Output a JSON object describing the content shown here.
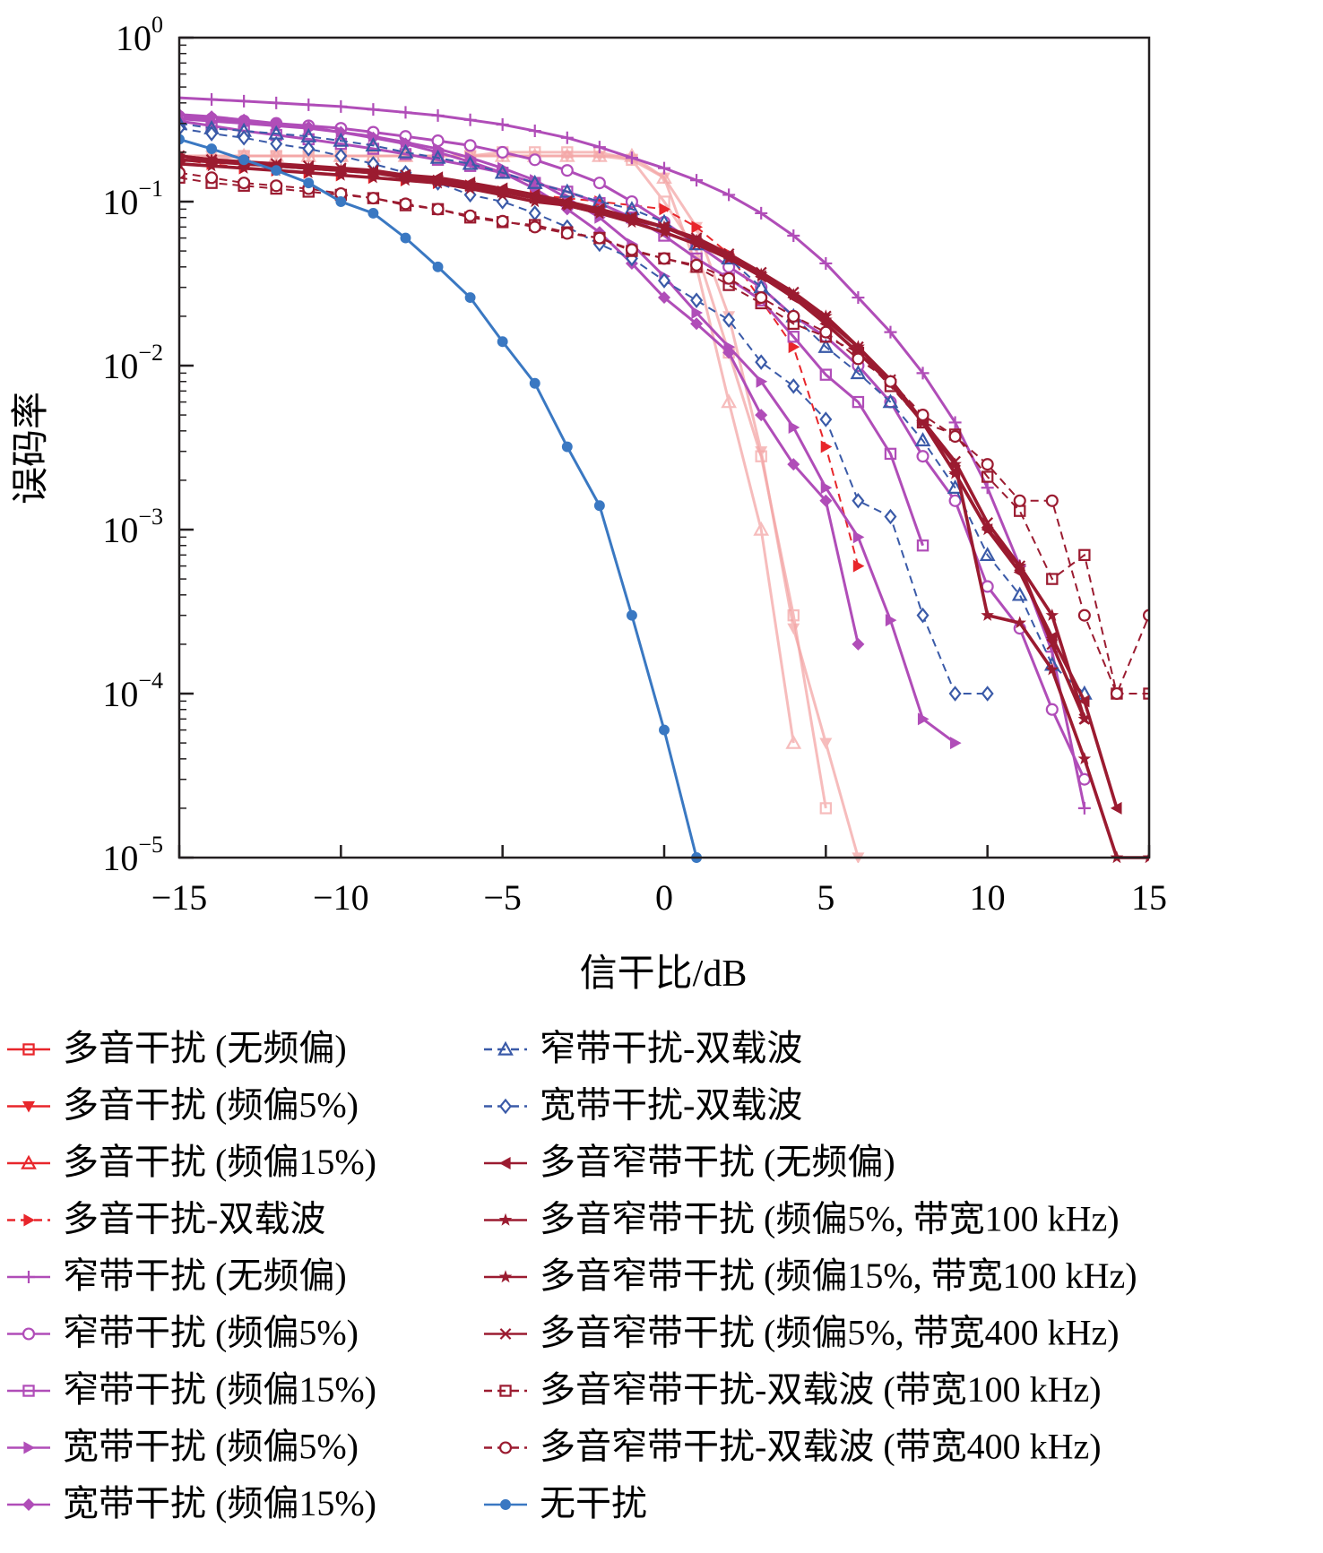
{
  "chart_data": {
    "type": "line",
    "title": "",
    "xlabel": "信干比/dB",
    "ylabel": "误码率",
    "xlim": [
      -15,
      15
    ],
    "ylim": [
      1e-05,
      1
    ],
    "yscale": "log",
    "grid": false,
    "legend_position": "below plot, two columns",
    "x_ticks": [
      -15,
      -10,
      -5,
      0,
      5,
      10,
      15
    ],
    "x_tick_labels": [
      "−15",
      "−10",
      "−5",
      "0",
      "5",
      "10",
      "15"
    ],
    "y_ticks": [
      1,
      0.1,
      0.01,
      0.001,
      0.0001,
      1e-05
    ],
    "y_tick_labels": [
      {
        "base": "10",
        "exp": "0"
      },
      {
        "base": "10",
        "exp": "−1"
      },
      {
        "base": "10",
        "exp": "−2"
      },
      {
        "base": "10",
        "exp": "−3"
      },
      {
        "base": "10",
        "exp": "−4"
      },
      {
        "base": "10",
        "exp": "−5"
      }
    ],
    "series": [
      {
        "name": "多音干扰 (无频偏)",
        "color": "#f4a6a6",
        "dash": false,
        "marker": "square",
        "opacity": 0.75,
        "x": [
          -15,
          -14,
          -13,
          -12,
          -11,
          -10,
          -9,
          -8,
          -7,
          -6,
          -5,
          -4,
          -3,
          -2,
          -1,
          0,
          1,
          2,
          3,
          4,
          5
        ],
        "y": [
          0.18,
          0.18,
          0.19,
          0.19,
          0.19,
          0.19,
          0.19,
          0.19,
          0.19,
          0.19,
          0.2,
          0.2,
          0.2,
          0.2,
          0.18,
          0.1,
          0.05,
          0.012,
          0.0028,
          0.0003,
          2e-05
        ]
      },
      {
        "name": "多音干扰 (频偏5%)",
        "color": "#f4a6a6",
        "dash": false,
        "marker": "triangle-down",
        "opacity": 0.75,
        "x": [
          -15,
          -14,
          -13,
          -12,
          -11,
          -10,
          -9,
          -8,
          -7,
          -6,
          -5,
          -4,
          -3,
          -2,
          -1,
          0,
          1,
          2,
          3,
          4,
          5,
          6
        ],
        "y": [
          0.19,
          0.19,
          0.19,
          0.19,
          0.19,
          0.19,
          0.19,
          0.19,
          0.19,
          0.19,
          0.19,
          0.19,
          0.19,
          0.19,
          0.18,
          0.14,
          0.07,
          0.02,
          0.003,
          0.00025,
          5e-05,
          1e-05
        ]
      },
      {
        "name": "多音干扰 (频偏15%)",
        "color": "#f4a6a6",
        "dash": false,
        "marker": "triangle-up",
        "opacity": 0.75,
        "x": [
          -15,
          -14,
          -13,
          -12,
          -11,
          -10,
          -9,
          -8,
          -7,
          -6,
          -5,
          -4,
          -3,
          -2,
          -1,
          0,
          1,
          2,
          3,
          4
        ],
        "y": [
          0.19,
          0.19,
          0.19,
          0.19,
          0.19,
          0.19,
          0.19,
          0.19,
          0.19,
          0.19,
          0.19,
          0.19,
          0.19,
          0.19,
          0.19,
          0.14,
          0.04,
          0.006,
          0.001,
          5e-05
        ]
      },
      {
        "name": "多音干扰-双载波",
        "color": "#e8262b",
        "dash": true,
        "marker": "triangle-right",
        "opacity": 1,
        "x": [
          -15,
          -14,
          -13,
          -12,
          -11,
          -10,
          -9,
          -8,
          -7,
          -6,
          -5,
          -4,
          -3,
          -2,
          -1,
          0,
          1,
          2,
          3,
          4,
          5,
          6
        ],
        "y": [
          0.18,
          0.17,
          0.16,
          0.155,
          0.15,
          0.145,
          0.14,
          0.135,
          0.13,
          0.125,
          0.115,
          0.11,
          0.105,
          0.1,
          0.095,
          0.09,
          0.07,
          0.048,
          0.025,
          0.013,
          0.0032,
          0.0006
        ]
      },
      {
        "name": "窄带干扰 (无频偏)",
        "color": "#b04db8",
        "dash": false,
        "marker": "plus",
        "opacity": 1,
        "x": [
          -15,
          -14,
          -13,
          -12,
          -11,
          -10,
          -9,
          -8,
          -7,
          -6,
          -5,
          -4,
          -3,
          -2,
          -1,
          0,
          1,
          2,
          3,
          4,
          5,
          6,
          7,
          8,
          9,
          10,
          11,
          12,
          13
        ],
        "y": [
          0.43,
          0.42,
          0.41,
          0.4,
          0.39,
          0.38,
          0.365,
          0.35,
          0.335,
          0.315,
          0.295,
          0.27,
          0.245,
          0.215,
          0.185,
          0.16,
          0.135,
          0.11,
          0.085,
          0.062,
          0.042,
          0.026,
          0.016,
          0.009,
          0.0045,
          0.0018,
          0.0006,
          0.00018,
          2e-05
        ]
      },
      {
        "name": "窄带干扰 (频偏5%)",
        "color": "#b04db8",
        "dash": false,
        "marker": "circle-open",
        "opacity": 1,
        "x": [
          -15,
          -14,
          -13,
          -12,
          -11,
          -10,
          -9,
          -8,
          -7,
          -6,
          -5,
          -4,
          -3,
          -2,
          -1,
          0,
          1,
          2,
          3,
          4,
          5,
          6,
          7,
          8,
          9,
          10,
          11,
          12,
          13
        ],
        "y": [
          0.33,
          0.32,
          0.31,
          0.3,
          0.29,
          0.28,
          0.265,
          0.25,
          0.235,
          0.22,
          0.2,
          0.18,
          0.155,
          0.13,
          0.1,
          0.075,
          0.055,
          0.04,
          0.03,
          0.02,
          0.015,
          0.01,
          0.006,
          0.0028,
          0.0015,
          0.00045,
          0.00025,
          8e-05,
          3e-05
        ]
      },
      {
        "name": "窄带干扰 (频偏15%)",
        "color": "#b04db8",
        "dash": false,
        "marker": "square",
        "opacity": 1,
        "x": [
          -15,
          -14,
          -13,
          -12,
          -11,
          -10,
          -9,
          -8,
          -7,
          -6,
          -5,
          -4,
          -3,
          -2,
          -1,
          0,
          1,
          2,
          3,
          4,
          5,
          6,
          7,
          8
        ],
        "y": [
          0.31,
          0.29,
          0.27,
          0.255,
          0.24,
          0.225,
          0.21,
          0.195,
          0.18,
          0.165,
          0.15,
          0.13,
          0.115,
          0.098,
          0.08,
          0.062,
          0.045,
          0.034,
          0.025,
          0.015,
          0.0088,
          0.006,
          0.0029,
          0.0008
        ]
      },
      {
        "name": "宽带干扰 (频偏5%)",
        "color": "#b04db8",
        "dash": false,
        "marker": "triangle-right",
        "opacity": 1,
        "x": [
          -15,
          -14,
          -13,
          -12,
          -11,
          -10,
          -9,
          -8,
          -7,
          -6,
          -5,
          -4,
          -3,
          -2,
          -1,
          0,
          1,
          2,
          3,
          4,
          5,
          6,
          7,
          8,
          9
        ],
        "y": [
          0.32,
          0.31,
          0.3,
          0.29,
          0.28,
          0.265,
          0.25,
          0.23,
          0.21,
          0.185,
          0.16,
          0.135,
          0.105,
          0.08,
          0.055,
          0.035,
          0.021,
          0.013,
          0.008,
          0.0042,
          0.0018,
          0.0009,
          0.00028,
          7e-05,
          5e-05
        ]
      },
      {
        "name": "宽带干扰 (频偏15%)",
        "color": "#b04db8",
        "dash": false,
        "marker": "diamond",
        "opacity": 1,
        "x": [
          -15,
          -14,
          -13,
          -12,
          -11,
          -10,
          -9,
          -8,
          -7,
          -6,
          -5,
          -4,
          -3,
          -2,
          -1,
          0,
          1,
          2,
          3,
          4,
          5,
          6
        ],
        "y": [
          0.34,
          0.33,
          0.315,
          0.3,
          0.285,
          0.265,
          0.245,
          0.225,
          0.2,
          0.175,
          0.15,
          0.12,
          0.09,
          0.065,
          0.042,
          0.026,
          0.018,
          0.012,
          0.005,
          0.0025,
          0.0015,
          0.0002
        ]
      },
      {
        "name": "窄带干扰-双载波",
        "color": "#3a5aa8",
        "dash": true,
        "marker": "triangle-up",
        "opacity": 1,
        "x": [
          -15,
          -14,
          -13,
          -12,
          -11,
          -10,
          -9,
          -8,
          -7,
          -6,
          -5,
          -4,
          -3,
          -2,
          -1,
          0,
          1,
          2,
          3,
          4,
          5,
          6,
          7,
          8,
          9,
          10,
          11,
          12,
          13
        ],
        "y": [
          0.3,
          0.28,
          0.27,
          0.26,
          0.25,
          0.235,
          0.22,
          0.2,
          0.185,
          0.17,
          0.15,
          0.13,
          0.115,
          0.1,
          0.09,
          0.075,
          0.055,
          0.045,
          0.03,
          0.02,
          0.013,
          0.009,
          0.006,
          0.0035,
          0.0018,
          0.0007,
          0.0004,
          0.00015,
          0.0001
        ]
      },
      {
        "name": "宽带干扰-双载波",
        "color": "#3a5aa8",
        "dash": true,
        "marker": "diamond-open",
        "opacity": 1,
        "x": [
          -15,
          -14,
          -13,
          -12,
          -11,
          -10,
          -9,
          -8,
          -7,
          -6,
          -5,
          -4,
          -3,
          -2,
          -1,
          0,
          1,
          2,
          3,
          4,
          5,
          6,
          7,
          8,
          9,
          10
        ],
        "y": [
          0.28,
          0.26,
          0.245,
          0.225,
          0.21,
          0.19,
          0.17,
          0.15,
          0.13,
          0.11,
          0.1,
          0.085,
          0.07,
          0.055,
          0.045,
          0.033,
          0.025,
          0.019,
          0.0105,
          0.0075,
          0.0047,
          0.0015,
          0.0012,
          0.0003,
          0.0001,
          0.0001
        ]
      },
      {
        "name": "多音窄带干扰 (无频偏)",
        "color": "#9b1b30",
        "dash": false,
        "marker": "triangle-left",
        "opacity": 1,
        "x": [
          -15,
          -14,
          -13,
          -12,
          -11,
          -10,
          -9,
          -8,
          -7,
          -6,
          -5,
          -4,
          -3,
          -2,
          -1,
          0,
          1,
          2,
          3,
          4,
          5,
          6,
          7,
          8,
          9,
          10,
          11,
          12,
          13,
          14
        ],
        "y": [
          0.18,
          0.175,
          0.17,
          0.165,
          0.16,
          0.155,
          0.15,
          0.145,
          0.14,
          0.13,
          0.12,
          0.11,
          0.1,
          0.09,
          0.08,
          0.07,
          0.058,
          0.046,
          0.035,
          0.026,
          0.018,
          0.012,
          0.0078,
          0.0045,
          0.0022,
          0.001,
          0.00055,
          0.00022,
          9e-05,
          2e-05
        ]
      },
      {
        "name": "多音窄带干扰 (频偏5%, 带宽100 kHz)",
        "color": "#9b1b30",
        "dash": false,
        "marker": "star",
        "opacity": 1,
        "x": [
          -15,
          -14,
          -13,
          -12,
          -11,
          -10,
          -9,
          -8,
          -7,
          -6,
          -5,
          -4,
          -3,
          -2,
          -1,
          0,
          1,
          2,
          3,
          4,
          5,
          6,
          7,
          8,
          9,
          10,
          11,
          12,
          13,
          14,
          15
        ],
        "y": [
          0.17,
          0.165,
          0.16,
          0.155,
          0.15,
          0.145,
          0.14,
          0.135,
          0.13,
          0.125,
          0.115,
          0.105,
          0.095,
          0.085,
          0.075,
          0.065,
          0.055,
          0.045,
          0.035,
          0.027,
          0.02,
          0.013,
          0.008,
          0.0045,
          0.0025,
          0.0003,
          0.00027,
          0.00014,
          4e-05,
          1e-05,
          1e-05
        ]
      },
      {
        "name": "多音窄带干扰 (频偏15%, 带宽100 kHz)",
        "color": "#9b1b30",
        "dash": false,
        "marker": "star",
        "opacity": 1,
        "x": [
          -15,
          -14,
          -13,
          -12,
          -11,
          -10,
          -9,
          -8,
          -7,
          -6,
          -5,
          -4,
          -3,
          -2,
          -1,
          0,
          1,
          2,
          3,
          4,
          5,
          6,
          7,
          8,
          9,
          10,
          11,
          12,
          13
        ],
        "y": [
          0.19,
          0.18,
          0.17,
          0.165,
          0.16,
          0.155,
          0.15,
          0.14,
          0.13,
          0.12,
          0.11,
          0.1,
          0.095,
          0.085,
          0.078,
          0.07,
          0.058,
          0.046,
          0.036,
          0.027,
          0.019,
          0.013,
          0.008,
          0.0045,
          0.0022,
          0.001,
          0.0006,
          0.0003,
          7e-05
        ]
      },
      {
        "name": "多音窄带干扰 (频偏5%, 带宽400 kHz)",
        "color": "#9b1b30",
        "dash": false,
        "marker": "x",
        "opacity": 1,
        "x": [
          -15,
          -14,
          -13,
          -12,
          -11,
          -10,
          -9,
          -8,
          -7,
          -6,
          -5,
          -4,
          -3,
          -2,
          -1,
          0,
          1,
          2,
          3,
          4,
          5,
          6,
          7,
          8,
          9,
          10,
          11,
          12,
          13
        ],
        "y": [
          0.19,
          0.18,
          0.175,
          0.17,
          0.165,
          0.16,
          0.155,
          0.145,
          0.135,
          0.125,
          0.115,
          0.105,
          0.097,
          0.088,
          0.08,
          0.07,
          0.06,
          0.048,
          0.037,
          0.028,
          0.02,
          0.013,
          0.0082,
          0.0046,
          0.0026,
          0.0011,
          0.0006,
          0.0002,
          7e-05
        ]
      },
      {
        "name": "多音窄带干扰-双载波 (带宽100 kHz)",
        "color": "#9b1b30",
        "dash": true,
        "marker": "square",
        "opacity": 1,
        "x": [
          -15,
          -14,
          -13,
          -12,
          -11,
          -10,
          -9,
          -8,
          -7,
          -6,
          -5,
          -4,
          -3,
          -2,
          -1,
          0,
          1,
          2,
          3,
          4,
          5,
          6,
          7,
          8,
          9,
          10,
          11,
          12,
          13,
          14,
          15
        ],
        "y": [
          0.14,
          0.13,
          0.125,
          0.12,
          0.115,
          0.11,
          0.105,
          0.095,
          0.09,
          0.08,
          0.075,
          0.072,
          0.065,
          0.06,
          0.05,
          0.045,
          0.04,
          0.031,
          0.024,
          0.018,
          0.015,
          0.012,
          0.0075,
          0.0045,
          0.0038,
          0.0021,
          0.0013,
          0.0005,
          0.0007,
          0.0001,
          0.0001
        ]
      },
      {
        "name": "多音窄带干扰-双载波 (带宽400 kHz)",
        "color": "#9b1b30",
        "dash": true,
        "marker": "circle-open",
        "opacity": 1,
        "x": [
          -15,
          -14,
          -13,
          -12,
          -11,
          -10,
          -9,
          -8,
          -7,
          -6,
          -5,
          -4,
          -3,
          -2,
          -1,
          0,
          1,
          2,
          3,
          4,
          5,
          6,
          7,
          8,
          9,
          10,
          11,
          12,
          13,
          14,
          15
        ],
        "y": [
          0.15,
          0.14,
          0.13,
          0.125,
          0.12,
          0.112,
          0.105,
          0.097,
          0.09,
          0.082,
          0.076,
          0.07,
          0.064,
          0.06,
          0.051,
          0.045,
          0.041,
          0.034,
          0.026,
          0.02,
          0.016,
          0.011,
          0.008,
          0.005,
          0.0037,
          0.0025,
          0.0015,
          0.0015,
          0.0003,
          0.0001,
          0.0003
        ]
      },
      {
        "name": "无干扰",
        "color": "#3a78c2",
        "dash": false,
        "marker": "circle",
        "opacity": 1,
        "x": [
          -15,
          -14,
          -13,
          -12,
          -11,
          -10,
          -9,
          -8,
          -7,
          -6,
          -5,
          -4,
          -3,
          -2,
          -1,
          0,
          1
        ],
        "y": [
          0.24,
          0.21,
          0.18,
          0.155,
          0.13,
          0.1,
          0.085,
          0.06,
          0.04,
          0.026,
          0.014,
          0.0078,
          0.0032,
          0.0014,
          0.0003,
          6e-05,
          1e-05
        ]
      }
    ]
  }
}
